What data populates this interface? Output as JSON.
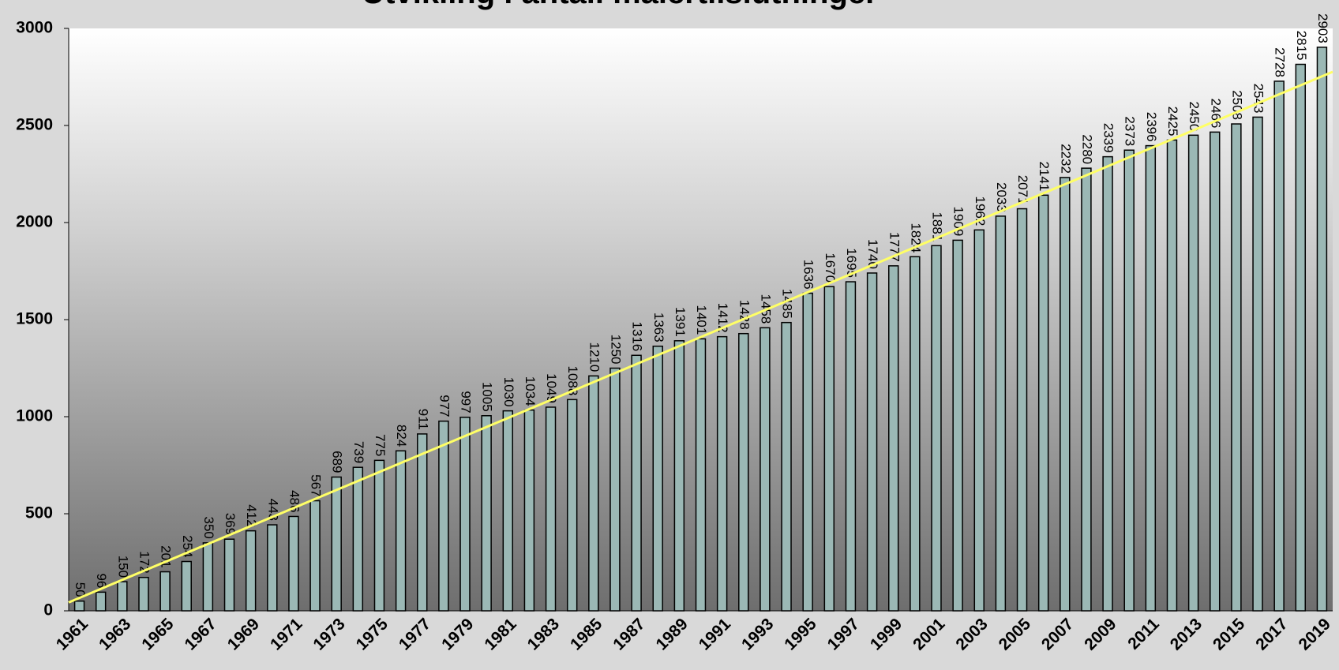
{
  "chart_data": {
    "type": "bar",
    "title": "Utvikling i antall malertilslutninger",
    "categories": [
      "1961",
      null,
      "1963",
      null,
      "1965",
      null,
      "1967",
      null,
      "1969",
      null,
      "1971",
      null,
      "1973",
      null,
      "1975",
      null,
      "1977",
      null,
      "1979",
      null,
      "1981",
      null,
      "1983",
      null,
      "1985",
      null,
      "1987",
      null,
      "1989",
      null,
      "1991",
      null,
      "1993",
      null,
      "1995",
      null,
      "1997",
      null,
      "1999",
      null,
      "2001",
      null,
      "2003",
      null,
      "2005",
      null,
      "2007",
      null,
      "2009",
      null,
      "2011",
      null,
      "2013",
      null,
      "2015",
      null,
      "2017",
      null,
      "2019"
    ],
    "values": [
      50,
      96,
      150,
      172,
      201,
      254,
      350,
      369,
      412,
      443,
      486,
      567,
      689,
      739,
      775,
      824,
      911,
      977,
      997,
      1005,
      1030,
      1034,
      1049,
      1088,
      1210,
      1250,
      1316,
      1363,
      1391,
      1401,
      1412,
      1428,
      1458,
      1485,
      1636,
      1670,
      1695,
      1740,
      1777,
      1824,
      1881,
      1909,
      1962,
      2033,
      2071,
      2141,
      2232,
      2280,
      2339,
      2373,
      2396,
      2425,
      2450,
      2466,
      2508,
      2543,
      2728,
      2815,
      2903
    ],
    "color": "#9bb8b5",
    "trendline_color": "#ffff66",
    "ylim": [
      0,
      3000
    ],
    "yticks": [
      0,
      500,
      1000,
      1500,
      2000,
      2500,
      3000
    ]
  }
}
